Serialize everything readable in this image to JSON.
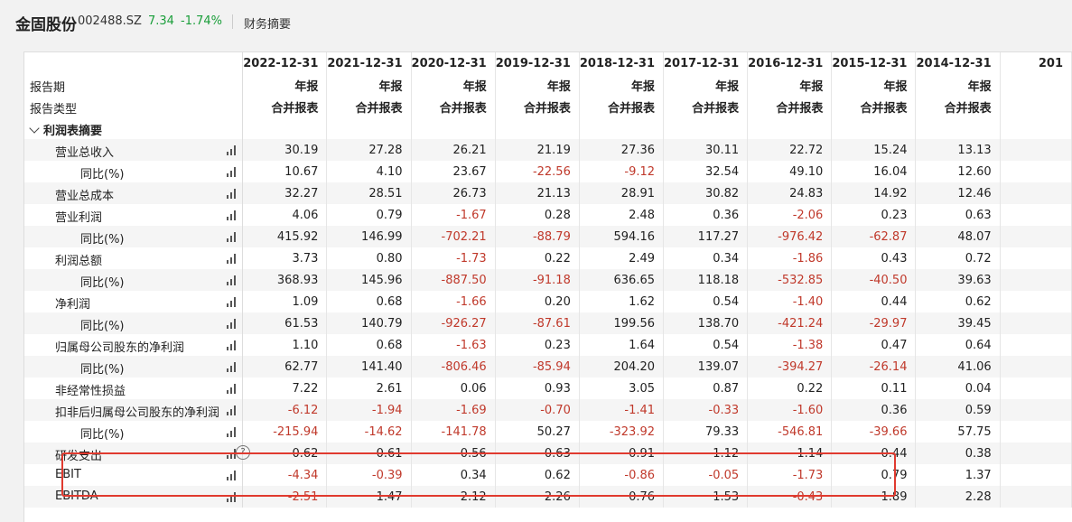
{
  "header": {
    "stock_name": "金固股份",
    "stock_code": "002488.SZ",
    "price": "7.34",
    "change": "-1.74%",
    "section": "财务摘要"
  },
  "columns": [
    {
      "date": "2022-12-31",
      "period": "年报",
      "type": "合并报表"
    },
    {
      "date": "2021-12-31",
      "period": "年报",
      "type": "合并报表"
    },
    {
      "date": "2020-12-31",
      "period": "年报",
      "type": "合并报表"
    },
    {
      "date": "2019-12-31",
      "period": "年报",
      "type": "合并报表"
    },
    {
      "date": "2018-12-31",
      "period": "年报",
      "type": "合并报表"
    },
    {
      "date": "2017-12-31",
      "period": "年报",
      "type": "合并报表"
    },
    {
      "date": "2016-12-31",
      "period": "年报",
      "type": "合并报表"
    },
    {
      "date": "2015-12-31",
      "period": "年报",
      "type": "合并报表"
    },
    {
      "date": "2014-12-31",
      "period": "年报",
      "type": "合并报表"
    },
    {
      "date": "201",
      "period": "",
      "type": ""
    }
  ],
  "header_labels": {
    "period": "报告期",
    "type": "报告类型"
  },
  "section_label": "利润表摘要",
  "rows": [
    {
      "label": "营业总收入",
      "level": 1,
      "values": [
        "30.19",
        "27.28",
        "26.21",
        "21.19",
        "27.36",
        "30.11",
        "22.72",
        "15.24",
        "13.13",
        ""
      ]
    },
    {
      "label": "同比(%)",
      "level": 2,
      "values": [
        "10.67",
        "4.10",
        "23.67",
        "-22.56",
        "-9.12",
        "32.54",
        "49.10",
        "16.04",
        "12.60",
        ""
      ]
    },
    {
      "label": "营业总成本",
      "level": 1,
      "values": [
        "32.27",
        "28.51",
        "26.73",
        "21.13",
        "28.91",
        "30.82",
        "24.83",
        "14.92",
        "12.46",
        ""
      ]
    },
    {
      "label": "营业利润",
      "level": 1,
      "values": [
        "4.06",
        "0.79",
        "-1.67",
        "0.28",
        "2.48",
        "0.36",
        "-2.06",
        "0.23",
        "0.63",
        ""
      ]
    },
    {
      "label": "同比(%)",
      "level": 2,
      "values": [
        "415.92",
        "146.99",
        "-702.21",
        "-88.79",
        "594.16",
        "117.27",
        "-976.42",
        "-62.87",
        "48.07",
        ""
      ]
    },
    {
      "label": "利润总额",
      "level": 1,
      "values": [
        "3.73",
        "0.80",
        "-1.73",
        "0.22",
        "2.49",
        "0.34",
        "-1.86",
        "0.43",
        "0.72",
        ""
      ]
    },
    {
      "label": "同比(%)",
      "level": 2,
      "values": [
        "368.93",
        "145.96",
        "-887.50",
        "-91.18",
        "636.65",
        "118.18",
        "-532.85",
        "-40.50",
        "39.63",
        ""
      ]
    },
    {
      "label": "净利润",
      "level": 1,
      "values": [
        "1.09",
        "0.68",
        "-1.66",
        "0.20",
        "1.62",
        "0.54",
        "-1.40",
        "0.44",
        "0.62",
        ""
      ]
    },
    {
      "label": "同比(%)",
      "level": 2,
      "values": [
        "61.53",
        "140.79",
        "-926.27",
        "-87.61",
        "199.56",
        "138.70",
        "-421.24",
        "-29.97",
        "39.45",
        ""
      ]
    },
    {
      "label": "归属母公司股东的净利润",
      "level": 1,
      "values": [
        "1.10",
        "0.68",
        "-1.63",
        "0.23",
        "1.64",
        "0.54",
        "-1.38",
        "0.47",
        "0.64",
        ""
      ]
    },
    {
      "label": "同比(%)",
      "level": 2,
      "values": [
        "62.77",
        "141.40",
        "-806.46",
        "-85.94",
        "204.20",
        "139.07",
        "-394.27",
        "-26.14",
        "41.06",
        ""
      ]
    },
    {
      "label": "非经常性损益",
      "level": 1,
      "values": [
        "7.22",
        "2.61",
        "0.06",
        "0.93",
        "3.05",
        "0.87",
        "0.22",
        "0.11",
        "0.04",
        ""
      ]
    },
    {
      "label": "扣非后归属母公司股东的净利润",
      "level": 1,
      "values": [
        "-6.12",
        "-1.94",
        "-1.69",
        "-0.70",
        "-1.41",
        "-0.33",
        "-1.60",
        "0.36",
        "0.59",
        ""
      ]
    },
    {
      "label": "同比(%)",
      "level": 2,
      "values": [
        "-215.94",
        "-14.62",
        "-141.78",
        "50.27",
        "-323.92",
        "79.33",
        "-546.81",
        "-39.66",
        "57.75",
        ""
      ]
    },
    {
      "label": "研发支出",
      "level": 1,
      "help": "?",
      "values": [
        "0.62",
        "0.61",
        "0.56",
        "0.63",
        "0.91",
        "1.12",
        "1.14",
        "0.44",
        "0.38",
        ""
      ]
    },
    {
      "label": "EBIT",
      "level": 1,
      "values": [
        "-4.34",
        "-0.39",
        "0.34",
        "0.62",
        "-0.86",
        "-0.05",
        "-1.73",
        "0.79",
        "1.37",
        ""
      ]
    },
    {
      "label": "EBITDA",
      "level": 1,
      "values": [
        "-2.51",
        "1.47",
        "2.12",
        "2.26",
        "0.76",
        "1.53",
        "-0.43",
        "1.89",
        "2.28",
        ""
      ]
    }
  ],
  "colors": {
    "up": "#1a9e3a",
    "negative": "#c0392b",
    "highlight": "#e03a2f"
  }
}
